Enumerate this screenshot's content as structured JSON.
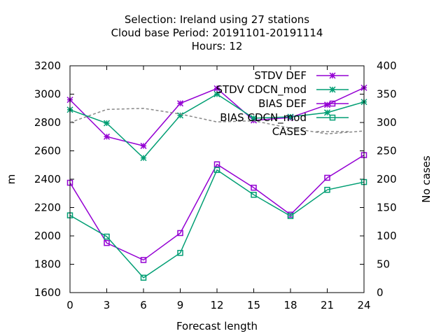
{
  "chart_data": {
    "type": "line",
    "title_lines": [
      "Selection: Ireland using    27 stations",
      "Cloud base   Period: 20191101-20191114",
      "Hours:  12"
    ],
    "xlabel": "Forecast length",
    "ylabel": "m",
    "y2label": "No cases",
    "x": [
      0,
      3,
      6,
      9,
      12,
      15,
      18,
      21,
      24
    ],
    "xlim": [
      0,
      24
    ],
    "ylim": [
      1600,
      3200
    ],
    "y2lim": [
      0,
      400
    ],
    "xticks": [
      "0",
      "3",
      "6",
      "9",
      "12",
      "15",
      "18",
      "21",
      "24"
    ],
    "yticks": [
      "1600",
      "1800",
      "2000",
      "2200",
      "2400",
      "2600",
      "2800",
      "3000",
      "3200"
    ],
    "y2ticks": [
      "0",
      "50",
      "100",
      "150",
      "200",
      "250",
      "300",
      "350",
      "400"
    ],
    "legend_position": "top-right",
    "series": [
      {
        "name": "STDV DEF",
        "axis": "y1",
        "color": "#9400d3",
        "marker": "x",
        "values": [
          2960,
          2700,
          2635,
          2935,
          3040,
          2815,
          2835,
          2925,
          3045
        ]
      },
      {
        "name": "STDV CDCN_mod",
        "axis": "y1",
        "color": "#009e73",
        "marker": "x",
        "values": [
          2890,
          2795,
          2550,
          2850,
          3000,
          2830,
          2840,
          2870,
          2945
        ]
      },
      {
        "name": "BIAS DEF",
        "axis": "y1",
        "color": "#9400d3",
        "marker": "square",
        "values": [
          2375,
          1950,
          1830,
          2020,
          2505,
          2340,
          2150,
          2410,
          2570
        ]
      },
      {
        "name": "BIAS CDCN_mod",
        "axis": "y1",
        "color": "#009e73",
        "marker": "square",
        "values": [
          2145,
          1995,
          1705,
          1880,
          2465,
          2290,
          2140,
          2325,
          2380
        ]
      },
      {
        "name": "CASES",
        "axis": "y2",
        "color": "#888888",
        "marker": "none",
        "dashed": true,
        "values": [
          300,
          323,
          325,
          315,
          301,
          303,
          290,
          280,
          285
        ]
      }
    ]
  }
}
